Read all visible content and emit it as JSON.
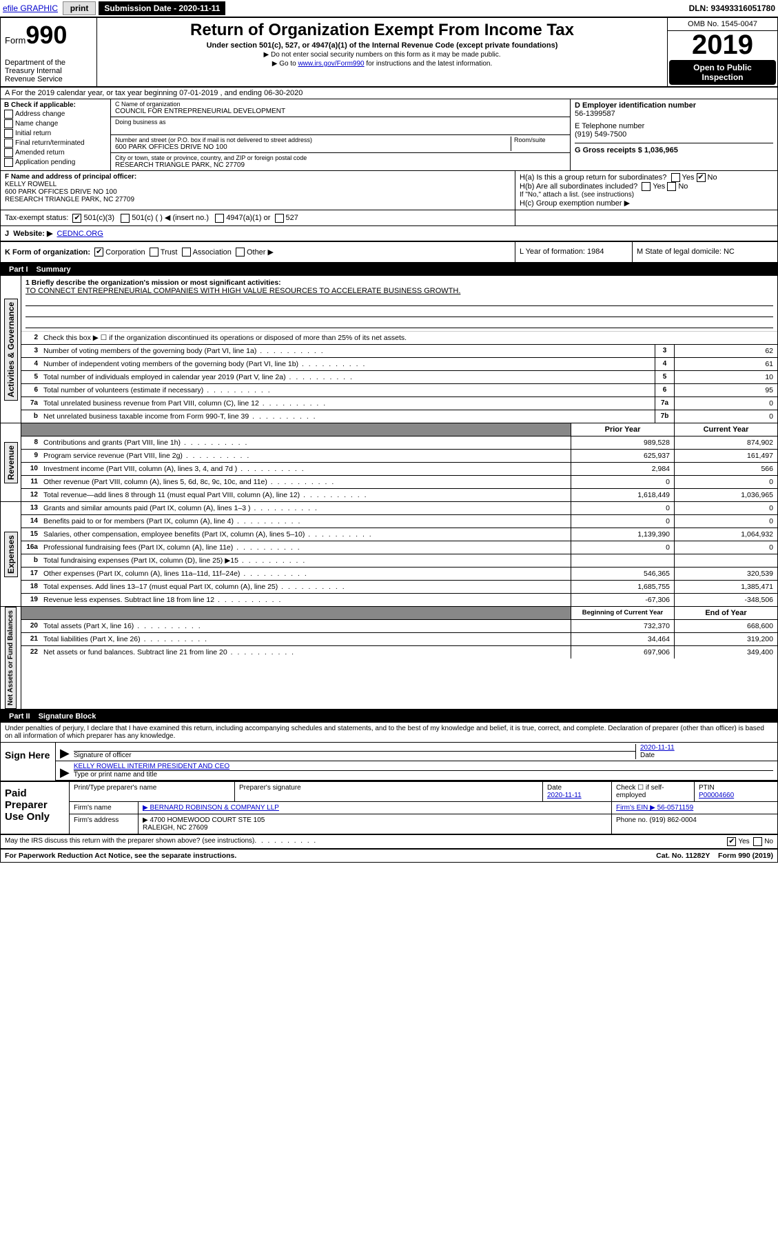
{
  "topbar": {
    "efile": "efile GRAPHIC",
    "print": "print",
    "submission_label": "Submission Date - 2020-11-11",
    "dln": "DLN: 93493316051780"
  },
  "header": {
    "form_prefix": "Form",
    "form_number": "990",
    "dept": "Department of the Treasury Internal Revenue Service",
    "title": "Return of Organization Exempt From Income Tax",
    "subtitle": "Under section 501(c), 527, or 4947(a)(1) of the Internal Revenue Code (except private foundations)",
    "note1": "▶ Do not enter social security numbers on this form as it may be made public.",
    "note2_pre": "▶ Go to ",
    "note2_link": "www.irs.gov/Form990",
    "note2_post": " for instructions and the latest information.",
    "omb": "OMB No. 1545-0047",
    "year": "2019",
    "open": "Open to Public Inspection"
  },
  "row_a": "A For the 2019 calendar year, or tax year beginning 07-01-2019   , and ending 06-30-2020",
  "col_b": {
    "label": "B Check if applicable:",
    "items": [
      "Address change",
      "Name change",
      "Initial return",
      "Final return/terminated",
      "Amended return",
      "Application pending"
    ]
  },
  "col_c": {
    "name_label": "C Name of organization",
    "name": "COUNCIL FOR ENTREPRENEURIAL DEVELOPMENT",
    "dba_label": "Doing business as",
    "addr_label": "Number and street (or P.O. box if mail is not delivered to street address)",
    "room_label": "Room/suite",
    "addr": "600 PARK OFFICES DRIVE NO 100",
    "city_label": "City or town, state or province, country, and ZIP or foreign postal code",
    "city": "RESEARCH TRIANGLE PARK, NC  27709"
  },
  "col_d": {
    "d_label": "D Employer identification number",
    "ein": "56-1399587",
    "e_label": "E Telephone number",
    "phone": "(919) 549-7500",
    "g_label": "G Gross receipts $ 1,036,965"
  },
  "row_f": {
    "f_label": "F Name and address of principal officer:",
    "officer": "KELLY ROWELL",
    "addr1": "600 PARK OFFICES DRIVE NO 100",
    "addr2": "RESEARCH TRIANGLE PARK, NC  27709",
    "ha": "H(a)  Is this a group return for subordinates?",
    "hb": "H(b)  Are all subordinates included?",
    "hb_note": "If \"No,\" attach a list. (see instructions)",
    "hc": "H(c)  Group exemption number ▶",
    "yes": "Yes",
    "no": "No"
  },
  "tax": {
    "label": "Tax-exempt status:",
    "a": "501(c)(3)",
    "b": "501(c) (  ) ◀ (insert no.)",
    "c": "4947(a)(1) or",
    "d": "527"
  },
  "row_j": {
    "label": "J",
    "text": "Website: ▶",
    "val": "CEDNC.ORG"
  },
  "row_k": {
    "k": "K Form of organization:",
    "corp": "Corporation",
    "trust": "Trust",
    "assoc": "Association",
    "other": "Other ▶",
    "l": "L Year of formation: 1984",
    "m": "M State of legal domicile: NC"
  },
  "part1": {
    "hdr": "Part I",
    "title": "Summary"
  },
  "mission_label": "1  Briefly describe the organization's mission or most significant activities:",
  "mission": "TO CONNECT ENTREPRENEURIAL COMPANIES WITH HIGH VALUE RESOURCES TO ACCELERATE BUSINESS GROWTH.",
  "gov_lines": [
    {
      "n": "2",
      "d": "Check this box ▶ ☐ if the organization discontinued its operations or disposed of more than 25% of its net assets."
    },
    {
      "n": "3",
      "d": "Number of voting members of the governing body (Part VI, line 1a)",
      "box": "3",
      "v": "62"
    },
    {
      "n": "4",
      "d": "Number of independent voting members of the governing body (Part VI, line 1b)",
      "box": "4",
      "v": "61"
    },
    {
      "n": "5",
      "d": "Total number of individuals employed in calendar year 2019 (Part V, line 2a)",
      "box": "5",
      "v": "10"
    },
    {
      "n": "6",
      "d": "Total number of volunteers (estimate if necessary)",
      "box": "6",
      "v": "95"
    },
    {
      "n": "7a",
      "d": "Total unrelated business revenue from Part VIII, column (C), line 12",
      "box": "7a",
      "v": "0"
    },
    {
      "n": "b",
      "d": "Net unrelated business taxable income from Form 990-T, line 39",
      "box": "7b",
      "v": "0"
    }
  ],
  "col_hdr": {
    "prior": "Prior Year",
    "current": "Current Year"
  },
  "rev_lines": [
    {
      "n": "8",
      "d": "Contributions and grants (Part VIII, line 1h)",
      "p": "989,528",
      "c": "874,902"
    },
    {
      "n": "9",
      "d": "Program service revenue (Part VIII, line 2g)",
      "p": "625,937",
      "c": "161,497"
    },
    {
      "n": "10",
      "d": "Investment income (Part VIII, column (A), lines 3, 4, and 7d )",
      "p": "2,984",
      "c": "566"
    },
    {
      "n": "11",
      "d": "Other revenue (Part VIII, column (A), lines 5, 6d, 8c, 9c, 10c, and 11e)",
      "p": "0",
      "c": "0"
    },
    {
      "n": "12",
      "d": "Total revenue—add lines 8 through 11 (must equal Part VIII, column (A), line 12)",
      "p": "1,618,449",
      "c": "1,036,965"
    }
  ],
  "exp_lines": [
    {
      "n": "13",
      "d": "Grants and similar amounts paid (Part IX, column (A), lines 1–3 )",
      "p": "0",
      "c": "0"
    },
    {
      "n": "14",
      "d": "Benefits paid to or for members (Part IX, column (A), line 4)",
      "p": "0",
      "c": "0"
    },
    {
      "n": "15",
      "d": "Salaries, other compensation, employee benefits (Part IX, column (A), lines 5–10)",
      "p": "1,139,390",
      "c": "1,064,932"
    },
    {
      "n": "16a",
      "d": "Professional fundraising fees (Part IX, column (A), line 11e)",
      "p": "0",
      "c": "0"
    },
    {
      "n": "b",
      "d": "Total fundraising expenses (Part IX, column (D), line 25) ▶15",
      "p": "",
      "c": ""
    },
    {
      "n": "17",
      "d": "Other expenses (Part IX, column (A), lines 11a–11d, 11f–24e)",
      "p": "546,365",
      "c": "320,539"
    },
    {
      "n": "18",
      "d": "Total expenses. Add lines 13–17 (must equal Part IX, column (A), line 25)",
      "p": "1,685,755",
      "c": "1,385,471"
    },
    {
      "n": "19",
      "d": "Revenue less expenses. Subtract line 18 from line 12",
      "p": "-67,306",
      "c": "-348,506"
    }
  ],
  "col_hdr2": {
    "begin": "Beginning of Current Year",
    "end": "End of Year"
  },
  "na_lines": [
    {
      "n": "20",
      "d": "Total assets (Part X, line 16)",
      "p": "732,370",
      "c": "668,600"
    },
    {
      "n": "21",
      "d": "Total liabilities (Part X, line 26)",
      "p": "34,464",
      "c": "319,200"
    },
    {
      "n": "22",
      "d": "Net assets or fund balances. Subtract line 21 from line 20",
      "p": "697,906",
      "c": "349,400"
    }
  ],
  "part2": {
    "hdr": "Part II",
    "title": "Signature Block"
  },
  "sig_intro": "Under penalties of perjury, I declare that I have examined this return, including accompanying schedules and statements, and to the best of my knowledge and belief, it is true, correct, and complete. Declaration of preparer (other than officer) is based on all information of which preparer has any knowledge.",
  "sign": {
    "label": "Sign Here",
    "sig_officer": "Signature of officer",
    "date": "2020-11-11",
    "date_lbl": "Date",
    "name": "KELLY ROWELL INTERIM PRESIDENT AND CEO",
    "name_lbl": "Type or print name and title"
  },
  "paid": {
    "label": "Paid Preparer Use Only",
    "h1": "Print/Type preparer's name",
    "h2": "Preparer's signature",
    "h3": "Date",
    "h4": "Check ☐ if self-employed",
    "h5": "PTIN",
    "date": "2020-11-11",
    "ptin": "P00004660",
    "firm_lbl": "Firm's name",
    "firm": "▶ BERNARD ROBINSON & COMPANY LLP",
    "ein_lbl": "Firm's EIN ▶ 56-0571159",
    "addr_lbl": "Firm's address",
    "addr": "▶ 4700 HOMEWOOD COURT STE 105",
    "city": "RALEIGH, NC  27609",
    "phone": "Phone no. (919) 862-0004"
  },
  "discuss": "May the IRS discuss this return with the preparer shown above? (see instructions)",
  "bottom": {
    "pra": "For Paperwork Reduction Act Notice, see the separate instructions.",
    "cat": "Cat. No. 11282Y",
    "form": "Form 990 (2019)"
  },
  "vlabels": {
    "gov": "Activities & Governance",
    "rev": "Revenue",
    "exp": "Expenses",
    "na": "Net Assets or Fund Balances"
  }
}
